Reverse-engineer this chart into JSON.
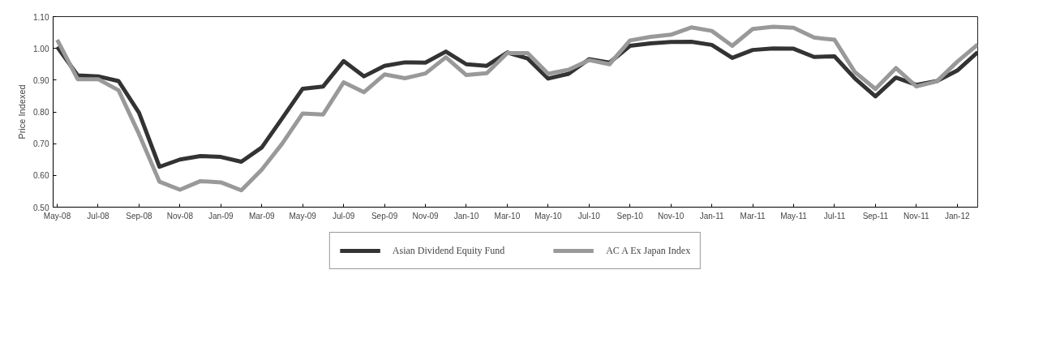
{
  "chart_data": {
    "type": "line",
    "ylabel": "Price Indexed",
    "categories": [
      "May-08",
      null,
      "Jul-08",
      null,
      "Sep-08",
      null,
      "Nov-08",
      null,
      "Jan-09",
      null,
      "Mar-09",
      null,
      "May-09",
      null,
      "Jul-09",
      null,
      "Sep-09",
      null,
      "Nov-09",
      null,
      "Jan-10",
      null,
      "Mar-10",
      null,
      "May-10",
      null,
      "Jul-10",
      null,
      "Sep-10",
      null,
      "Nov-10",
      null,
      "Jan-11",
      null,
      "Mar-11",
      null,
      "May-11",
      null,
      "Jul-11",
      null,
      "Sep-11",
      null,
      "Nov-11",
      null,
      "Jan-12",
      null
    ],
    "ylim": [
      0.5,
      1.1
    ],
    "yticks": [
      {
        "value": 0.5,
        "label": "0.50"
      },
      {
        "value": 0.6,
        "label": "0.60"
      },
      {
        "value": 0.7,
        "label": "0.70"
      },
      {
        "value": 0.8,
        "label": "0.80"
      },
      {
        "value": 0.9,
        "label": "0.90"
      },
      {
        "value": 1.0,
        "label": "1.00"
      },
      {
        "value": 1.1,
        "label": "1.10"
      }
    ],
    "grid": false,
    "legend": "bottom",
    "marker": "none",
    "line_style": "solid",
    "series": [
      {
        "name": "Asian Dividend Equity Fund",
        "color": "#333333",
        "values": [
          1.005,
          0.915,
          0.912,
          0.897,
          0.797,
          0.627,
          0.65,
          0.661,
          0.658,
          0.643,
          0.688,
          0.78,
          0.873,
          0.88,
          0.96,
          0.912,
          0.945,
          0.956,
          0.955,
          0.99,
          0.95,
          0.945,
          0.987,
          0.968,
          0.905,
          0.92,
          0.966,
          0.955,
          1.008,
          1.016,
          1.02,
          1.021,
          1.011,
          0.97,
          0.995,
          1.0,
          0.999,
          0.973,
          0.975,
          0.905,
          0.849,
          0.908,
          0.885,
          0.897,
          0.93,
          0.988
        ]
      },
      {
        "name": "AC A Ex Japan Index",
        "color": "#999999",
        "values": [
          1.027,
          0.903,
          0.903,
          0.868,
          0.73,
          0.58,
          0.555,
          0.582,
          0.578,
          0.553,
          0.618,
          0.7,
          0.795,
          0.792,
          0.893,
          0.862,
          0.918,
          0.906,
          0.921,
          0.972,
          0.916,
          0.922,
          0.985,
          0.985,
          0.92,
          0.933,
          0.963,
          0.95,
          1.025,
          1.036,
          1.043,
          1.066,
          1.055,
          1.008,
          1.061,
          1.068,
          1.065,
          1.034,
          1.027,
          0.925,
          0.872,
          0.938,
          0.88,
          0.896,
          0.958,
          1.012
        ]
      }
    ]
  }
}
